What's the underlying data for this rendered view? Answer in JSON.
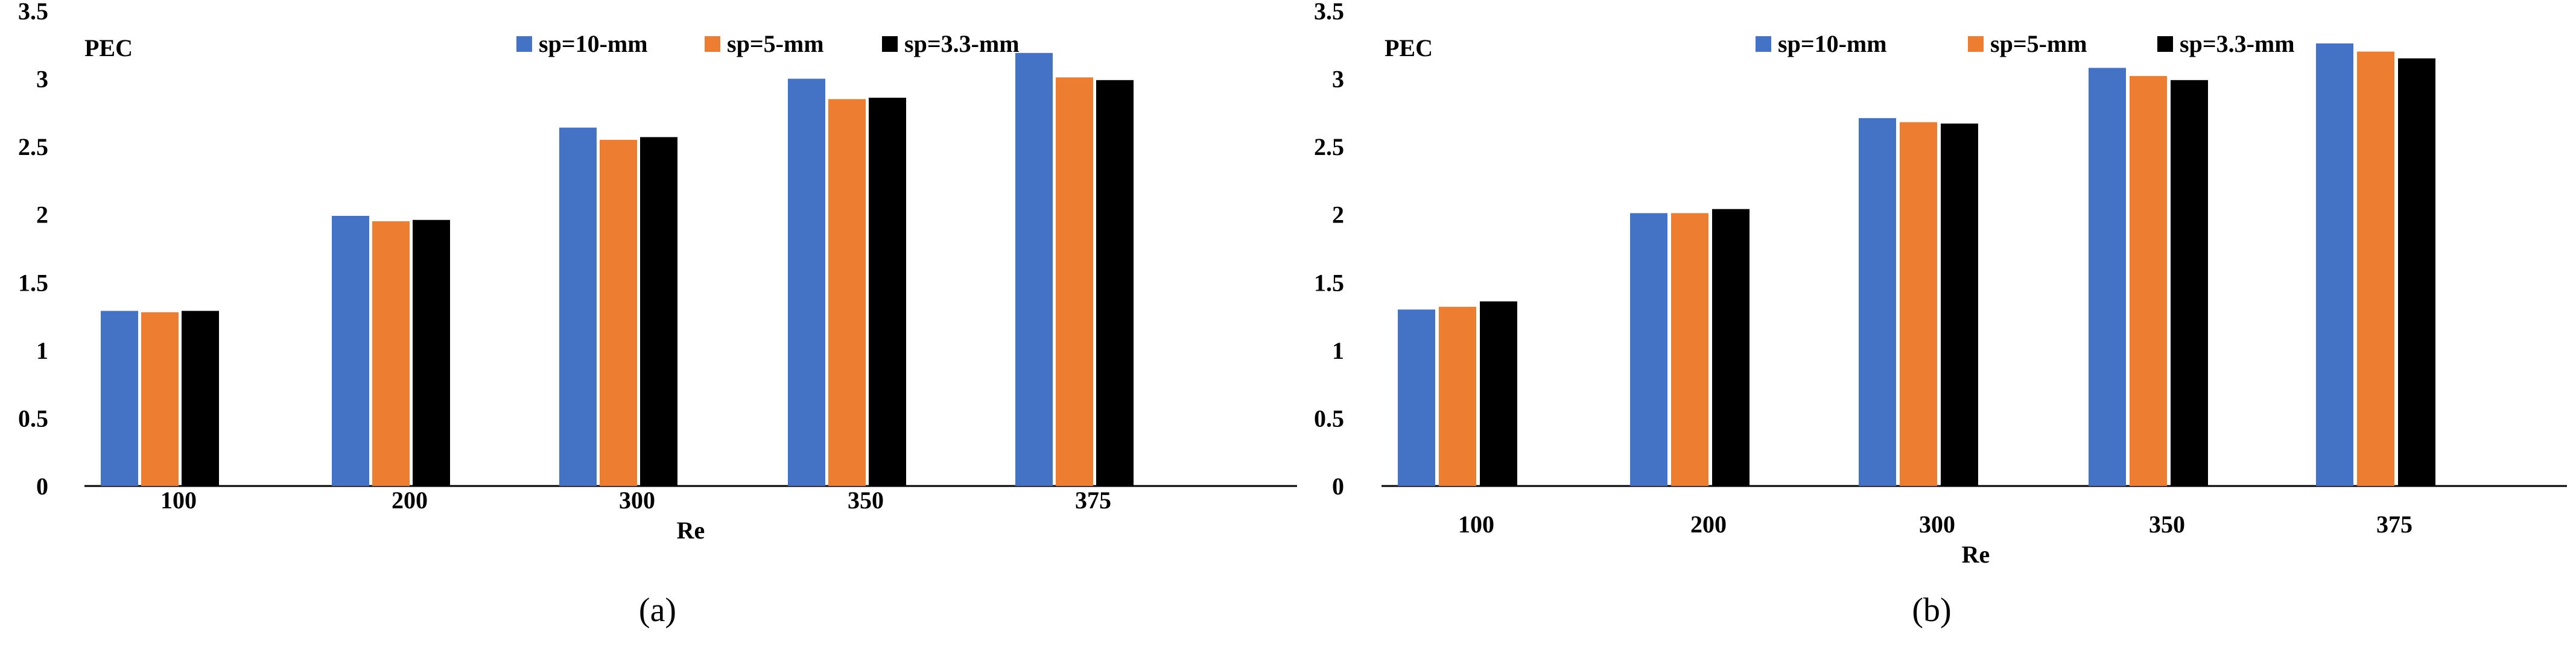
{
  "colors": {
    "series_0": "#4472C4",
    "series_1": "#ED7D31",
    "series_2": "#000000"
  },
  "chart_data": [
    {
      "type": "bar",
      "caption": "(a)",
      "ylabel": "PEC",
      "xlabel": "Re",
      "ylim": [
        0,
        3.5
      ],
      "yticks": [
        "0",
        "0.5",
        "1",
        "1.5",
        "2",
        "2.5",
        "3",
        "3.5"
      ],
      "categories": [
        "100",
        "200",
        "300",
        "350",
        "375"
      ],
      "series": [
        {
          "name": "sp=10-mm",
          "values": [
            1.29,
            1.99,
            2.64,
            3.0,
            3.19
          ]
        },
        {
          "name": "sp=5-mm",
          "values": [
            1.28,
            1.95,
            2.55,
            2.85,
            3.01
          ]
        },
        {
          "name": "sp=3.3-mm",
          "values": [
            1.29,
            1.96,
            2.57,
            2.86,
            2.99
          ]
        }
      ],
      "legend_position": "top-right",
      "grid": false
    },
    {
      "type": "bar",
      "caption": "(b)",
      "ylabel": "PEC",
      "xlabel": "Re",
      "ylim": [
        0,
        3.5
      ],
      "yticks": [
        "0",
        "0.5",
        "1",
        "1.5",
        "2",
        "2.5",
        "3",
        "3.5"
      ],
      "categories": [
        "100",
        "200",
        "300",
        "350",
        "375"
      ],
      "series": [
        {
          "name": "sp=10-mm",
          "values": [
            1.3,
            2.01,
            2.71,
            3.08,
            3.26
          ]
        },
        {
          "name": "sp=5-mm",
          "values": [
            1.32,
            2.01,
            2.68,
            3.02,
            3.2
          ]
        },
        {
          "name": "sp=3.3-mm",
          "values": [
            1.36,
            2.04,
            2.67,
            2.99,
            3.15
          ]
        }
      ],
      "legend_position": "top-right",
      "grid": false
    }
  ]
}
